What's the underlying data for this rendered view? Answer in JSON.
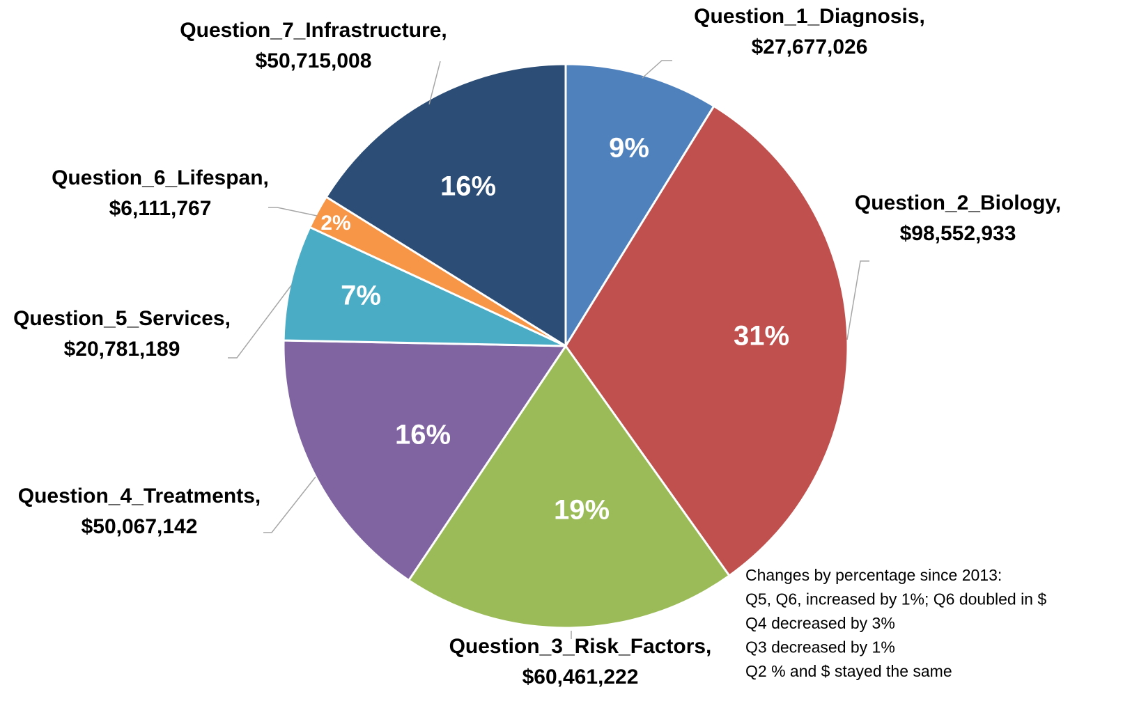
{
  "chart_data": {
    "type": "pie",
    "categories": [
      "Question_1_Diagnosis,",
      "Question_2_Biology,",
      "Question_3_Risk_Factors,",
      "Question_4_Treatments,",
      "Question_5_Services,",
      "Question_6_Lifespan,",
      "Question_7_Infrastructure,"
    ],
    "values": [
      27677026,
      98552933,
      60461222,
      50067142,
      20781189,
      6111767,
      50715008
    ],
    "value_labels": [
      "$27,677,026",
      "$98,552,933",
      "$60,461,222",
      "$50,067,142",
      "$20,781,189",
      "$6,111,767",
      "$50,715,008"
    ],
    "percent_labels": [
      "9%",
      "31%",
      "19%",
      "16%",
      "7%",
      "2%",
      "16%"
    ],
    "colors": [
      "#4f81bd",
      "#c0504d",
      "#9bbb59",
      "#8064a2",
      "#4bacc6",
      "#f79646",
      "#2c4d75"
    ],
    "annotation": [
      "Changes by percentage since 2013:",
      "Q5, Q6, increased by 1%; Q6 doubled in $",
      "Q4 decreased by 3%",
      "Q3 decreased by 1%",
      "Q2 % and $ stayed the same"
    ]
  }
}
